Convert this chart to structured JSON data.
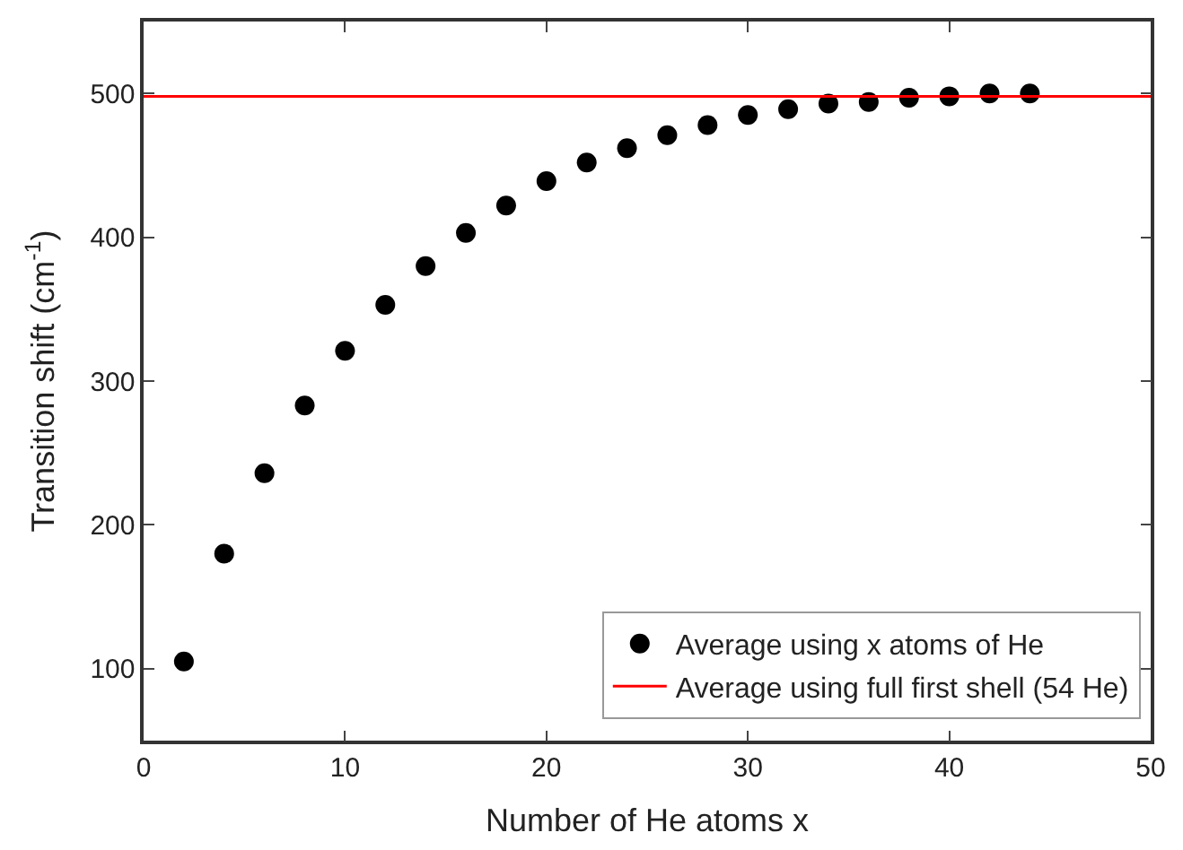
{
  "chart_data": {
    "type": "scatter",
    "xlabel": "Number of He atoms x",
    "ylabel": "Transition shift (cm$^{-1}$)",
    "x": [
      2,
      4,
      6,
      8,
      10,
      12,
      14,
      16,
      18,
      20,
      22,
      24,
      26,
      28,
      30,
      32,
      34,
      36,
      38,
      40,
      42,
      44
    ],
    "series": [
      {
        "name": "Average using x atoms of He",
        "color": "#000000",
        "values": [
          105,
          180,
          236,
          283,
          321,
          353,
          380,
          403,
          422,
          439,
          452,
          462,
          471,
          478,
          485,
          489,
          493,
          494,
          497,
          498,
          500,
          500
        ]
      }
    ],
    "ref_lines": [
      {
        "axis": "y",
        "value": 498,
        "label": "Average using full first shell (54 He)",
        "color": "#ff0000",
        "line_style": "solid"
      }
    ],
    "xlim": [
      0,
      50
    ],
    "xticks": [
      0,
      10,
      20,
      30,
      40,
      50
    ],
    "ylim": [
      50,
      550
    ],
    "yticks": [
      100,
      200,
      300,
      400,
      500
    ],
    "marker": "circle",
    "legend": "bottom right"
  }
}
